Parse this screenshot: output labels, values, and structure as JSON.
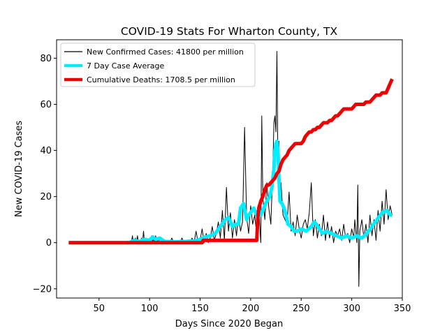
{
  "chart_data": {
    "type": "line",
    "title": "COVID-19 Stats For Wharton County, TX",
    "xlabel": "Days Since 2020 Began",
    "ylabel": "New COVID-19 Cases",
    "xlim": [
      8,
      350
    ],
    "ylim": [
      -24,
      88
    ],
    "xticks": [
      50,
      100,
      150,
      200,
      250,
      300,
      350
    ],
    "yticks": [
      -20,
      0,
      20,
      40,
      60,
      80
    ],
    "grid": false,
    "legend_position": "top-left",
    "series": [
      {
        "name": "New Confirmed Cases: 41800 per million",
        "color": "#000000",
        "x": [
          20,
          82,
          83,
          84,
          85,
          86,
          87,
          88,
          89,
          90,
          91,
          92,
          93,
          94,
          95,
          96,
          97,
          98,
          99,
          100,
          101,
          102,
          103,
          104,
          105,
          106,
          107,
          108,
          109,
          110,
          112,
          114,
          116,
          118,
          120,
          122,
          124,
          126,
          128,
          130,
          132,
          134,
          136,
          138,
          140,
          142,
          144,
          146,
          148,
          150,
          152,
          154,
          156,
          158,
          160,
          162,
          164,
          166,
          168,
          170,
          172,
          174,
          176,
          178,
          180,
          182,
          184,
          186,
          188,
          190,
          192,
          194,
          196,
          198,
          200,
          202,
          204,
          206,
          208,
          210,
          211,
          212,
          214,
          216,
          218,
          220,
          222,
          223,
          224,
          225,
          226,
          227,
          228,
          229,
          230,
          232,
          234,
          236,
          238,
          240,
          242,
          244,
          246,
          248,
          250,
          252,
          254,
          256,
          258,
          260,
          262,
          264,
          266,
          268,
          270,
          272,
          274,
          276,
          278,
          280,
          282,
          284,
          286,
          288,
          290,
          292,
          294,
          296,
          298,
          300,
          302,
          303,
          304,
          305,
          306,
          307,
          308,
          310,
          312,
          314,
          316,
          318,
          320,
          322,
          324,
          326,
          328,
          330,
          332,
          334,
          336,
          338,
          340
        ],
        "values": [
          0,
          0,
          3,
          0,
          0,
          2,
          0,
          3,
          0,
          1,
          0,
          2,
          0,
          5,
          0,
          1,
          0,
          1,
          0,
          2,
          0,
          3,
          0,
          2,
          0,
          3,
          0,
          1,
          0,
          2,
          0,
          1,
          0,
          1,
          0,
          2,
          0,
          1,
          0,
          0,
          2,
          0,
          1,
          0,
          0,
          2,
          0,
          5,
          0,
          1,
          6,
          0,
          4,
          0,
          2,
          7,
          1,
          4,
          9,
          2,
          14,
          1,
          24,
          5,
          13,
          2,
          10,
          3,
          12,
          5,
          9,
          50,
          11,
          4,
          16,
          8,
          12,
          3,
          15,
          0,
          55,
          20,
          10,
          26,
          15,
          8,
          33,
          52,
          55,
          48,
          83,
          30,
          44,
          20,
          26,
          12,
          10,
          8,
          22,
          5,
          9,
          3,
          12,
          6,
          2,
          8,
          10,
          6,
          13,
          26,
          3,
          10,
          2,
          8,
          3,
          12,
          1,
          9,
          2,
          7,
          0,
          5,
          3,
          6,
          1,
          8,
          2,
          4,
          0,
          6,
          2,
          10,
          5,
          0,
          25,
          -19,
          5,
          10,
          2,
          8,
          0,
          12,
          3,
          10,
          1,
          14,
          5,
          18,
          8,
          23,
          10,
          16,
          12
        ],
        "line_width": 1
      },
      {
        "name": "7 Day Case Average",
        "color": "#00eeff",
        "x": [
          20,
          80,
          85,
          90,
          95,
          100,
          103,
          106,
          110,
          115,
          120,
          125,
          130,
          135,
          140,
          145,
          150,
          155,
          160,
          165,
          170,
          175,
          178,
          180,
          182,
          185,
          188,
          190,
          193,
          196,
          198,
          200,
          203,
          206,
          208,
          210,
          213,
          216,
          219,
          221,
          223,
          224,
          225,
          226,
          227,
          228,
          229,
          231,
          233,
          235,
          237,
          240,
          243,
          246,
          250,
          255,
          260,
          263,
          265,
          268,
          271,
          275,
          280,
          285,
          290,
          295,
          300,
          305,
          310,
          315,
          320,
          325,
          330,
          335,
          338,
          340
        ],
        "values": [
          0,
          0,
          1,
          0.5,
          1.5,
          1,
          2.5,
          1.5,
          2,
          0.5,
          0.5,
          0.3,
          0.5,
          0.5,
          0.7,
          0.8,
          1.5,
          2.5,
          3,
          4,
          7,
          10,
          11,
          9,
          7,
          8,
          8,
          15,
          17,
          10,
          12,
          13,
          15,
          12,
          14,
          12,
          15,
          18,
          20,
          24,
          32,
          40,
          43,
          44,
          40,
          28,
          18,
          17,
          15,
          12,
          8,
          7,
          5,
          5,
          6,
          5,
          7,
          9,
          8,
          6,
          4,
          5,
          4,
          3,
          2,
          3,
          2,
          3,
          2,
          4,
          7,
          10,
          13,
          14,
          12,
          12
        ],
        "line_width": 5
      },
      {
        "name": "Cumulative Deaths: 1708.5 per million",
        "color": "#ee0000",
        "x": [
          20,
          152,
          153,
          206,
          207,
          208,
          210,
          212,
          214,
          216,
          218,
          220,
          222,
          224,
          226,
          228,
          230,
          232,
          234,
          236,
          238,
          240,
          242,
          244,
          246,
          248,
          250,
          252,
          254,
          256,
          258,
          260,
          262,
          264,
          266,
          268,
          270,
          272,
          274,
          276,
          278,
          280,
          282,
          284,
          286,
          288,
          290,
          292,
          294,
          296,
          298,
          300,
          302,
          304,
          306,
          308,
          310,
          312,
          314,
          316,
          318,
          320,
          322,
          324,
          326,
          328,
          330,
          332,
          334,
          336,
          338,
          340
        ],
        "values": [
          0,
          0,
          1,
          1,
          10,
          15,
          18,
          20,
          23,
          25,
          25,
          26,
          27,
          28,
          30,
          31,
          34,
          36,
          37,
          38,
          40,
          41,
          42,
          43,
          43,
          43,
          43,
          44,
          46,
          47,
          48,
          48,
          49,
          49,
          50,
          50,
          51,
          52,
          52,
          52,
          53,
          53,
          54,
          55,
          55,
          56,
          57,
          58,
          58,
          58,
          58,
          58,
          59,
          60,
          60,
          60,
          60,
          60,
          61,
          61,
          61,
          62,
          63,
          64,
          64,
          64,
          65,
          65,
          65,
          67,
          69,
          71
        ],
        "line_width": 5
      }
    ]
  }
}
